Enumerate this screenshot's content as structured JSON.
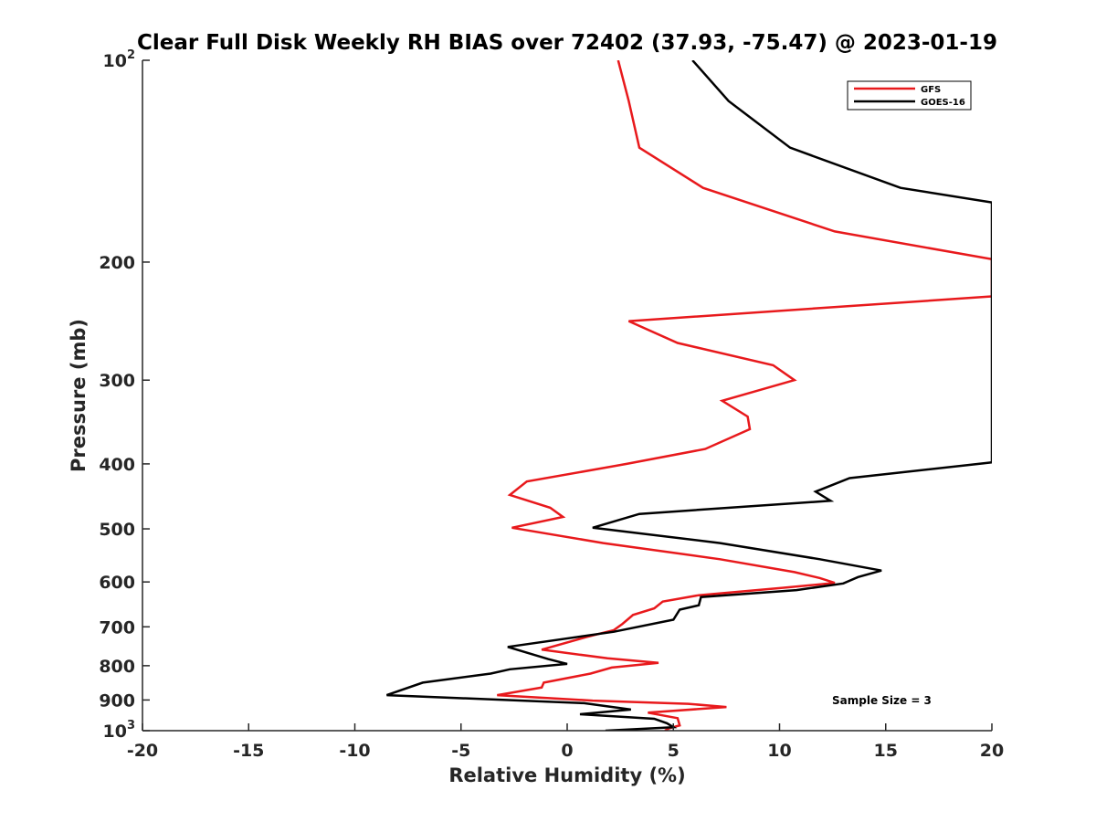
{
  "chart_data": {
    "type": "line",
    "title": "Clear Full Disk Weekly RH BIAS over 72402 (37.93, -75.47) @ 2023-01-19",
    "xlabel": "Relative Humidity (%)",
    "ylabel": "Pressure (mb)",
    "xlim": [
      -20,
      20
    ],
    "ylim": [
      100,
      1000
    ],
    "y_scale": "log",
    "y_reversed": true,
    "x_ticks": [
      -20,
      -15,
      -10,
      -5,
      0,
      5,
      10,
      15,
      20
    ],
    "x_tick_labels": [
      "-20",
      "-15",
      "-10",
      "-5",
      "0",
      "5",
      "10",
      "15",
      "20"
    ],
    "y_ticks": [
      100,
      200,
      300,
      400,
      500,
      600,
      700,
      800,
      900,
      1000
    ],
    "y_tick_labels": [
      {
        "base": "10",
        "sup": "2"
      },
      {
        "base": "200",
        "sup": ""
      },
      {
        "base": "300",
        "sup": ""
      },
      {
        "base": "400",
        "sup": ""
      },
      {
        "base": "500",
        "sup": ""
      },
      {
        "base": "600",
        "sup": ""
      },
      {
        "base": "700",
        "sup": ""
      },
      {
        "base": "800",
        "sup": ""
      },
      {
        "base": "900",
        "sup": ""
      },
      {
        "base": "10",
        "sup": "3"
      }
    ],
    "grid": false,
    "legend_position": "top-right",
    "annotation": "Sample Size = 3",
    "series": [
      {
        "name": "GFS",
        "color": "#e8191c",
        "points": [
          {
            "x": 2.4,
            "p": 100
          },
          {
            "x": 2.9,
            "p": 115
          },
          {
            "x": 3.4,
            "p": 135
          },
          {
            "x": 6.4,
            "p": 155
          },
          {
            "x": 12.6,
            "p": 180
          },
          {
            "x": 20.0,
            "p": 198
          },
          {
            "x": 20.0,
            "p": 225
          },
          {
            "x": 2.9,
            "p": 245
          },
          {
            "x": 5.2,
            "p": 264
          },
          {
            "x": 9.7,
            "p": 285
          },
          {
            "x": 10.7,
            "p": 300
          },
          {
            "x": 7.3,
            "p": 322
          },
          {
            "x": 8.5,
            "p": 340
          },
          {
            "x": 8.6,
            "p": 355
          },
          {
            "x": 6.5,
            "p": 380
          },
          {
            "x": 2.8,
            "p": 400
          },
          {
            "x": -1.9,
            "p": 425
          },
          {
            "x": -2.7,
            "p": 445
          },
          {
            "x": -0.8,
            "p": 465
          },
          {
            "x": -0.2,
            "p": 480
          },
          {
            "x": -2.6,
            "p": 498
          },
          {
            "x": 1.7,
            "p": 525
          },
          {
            "x": 7.2,
            "p": 555
          },
          {
            "x": 10.7,
            "p": 580
          },
          {
            "x": 11.9,
            "p": 592
          },
          {
            "x": 12.6,
            "p": 602
          },
          {
            "x": 10.2,
            "p": 612
          },
          {
            "x": 6.2,
            "p": 628
          },
          {
            "x": 4.5,
            "p": 642
          },
          {
            "x": 4.1,
            "p": 657
          },
          {
            "x": 3.1,
            "p": 672
          },
          {
            "x": 2.6,
            "p": 693
          },
          {
            "x": 2.2,
            "p": 708
          },
          {
            "x": 0.9,
            "p": 725
          },
          {
            "x": -1.2,
            "p": 757
          },
          {
            "x": 1.9,
            "p": 780
          },
          {
            "x": 4.3,
            "p": 792
          },
          {
            "x": 2.1,
            "p": 805
          },
          {
            "x": 1.1,
            "p": 822
          },
          {
            "x": -1.1,
            "p": 848
          },
          {
            "x": -1.2,
            "p": 862
          },
          {
            "x": -3.3,
            "p": 885
          },
          {
            "x": 1.2,
            "p": 902
          },
          {
            "x": 5.7,
            "p": 912
          },
          {
            "x": 7.5,
            "p": 922
          },
          {
            "x": 3.8,
            "p": 940
          },
          {
            "x": 5.2,
            "p": 958
          },
          {
            "x": 5.3,
            "p": 982
          },
          {
            "x": 4.8,
            "p": 992
          },
          {
            "x": 4.6,
            "p": 1000
          }
        ]
      },
      {
        "name": "GOES-16",
        "color": "#000000",
        "points": [
          {
            "x": 5.9,
            "p": 100
          },
          {
            "x": 7.6,
            "p": 115
          },
          {
            "x": 10.5,
            "p": 135
          },
          {
            "x": 15.7,
            "p": 155
          },
          {
            "x": 20.0,
            "p": 163
          },
          {
            "x": 20.0,
            "p": 398
          },
          {
            "x": 13.3,
            "p": 420
          },
          {
            "x": 11.7,
            "p": 440
          },
          {
            "x": 12.4,
            "p": 454
          },
          {
            "x": 3.4,
            "p": 475
          },
          {
            "x": 1.2,
            "p": 498
          },
          {
            "x": 7.2,
            "p": 525
          },
          {
            "x": 11.9,
            "p": 555
          },
          {
            "x": 14.8,
            "p": 577
          },
          {
            "x": 13.7,
            "p": 590
          },
          {
            "x": 13.0,
            "p": 603
          },
          {
            "x": 10.8,
            "p": 617
          },
          {
            "x": 6.3,
            "p": 632
          },
          {
            "x": 6.2,
            "p": 650
          },
          {
            "x": 5.3,
            "p": 660
          },
          {
            "x": 5.0,
            "p": 683
          },
          {
            "x": 2.2,
            "p": 712
          },
          {
            "x": -2.8,
            "p": 750
          },
          {
            "x": -0.9,
            "p": 782
          },
          {
            "x": 0.0,
            "p": 795
          },
          {
            "x": -2.7,
            "p": 810
          },
          {
            "x": -3.6,
            "p": 822
          },
          {
            "x": -6.8,
            "p": 848
          },
          {
            "x": -8.5,
            "p": 885
          },
          {
            "x": 0.8,
            "p": 910
          },
          {
            "x": 3.0,
            "p": 930
          },
          {
            "x": 0.6,
            "p": 945
          },
          {
            "x": 4.1,
            "p": 960
          },
          {
            "x": 4.7,
            "p": 975
          },
          {
            "x": 5.0,
            "p": 988
          },
          {
            "x": 1.8,
            "p": 1000
          }
        ]
      }
    ]
  }
}
